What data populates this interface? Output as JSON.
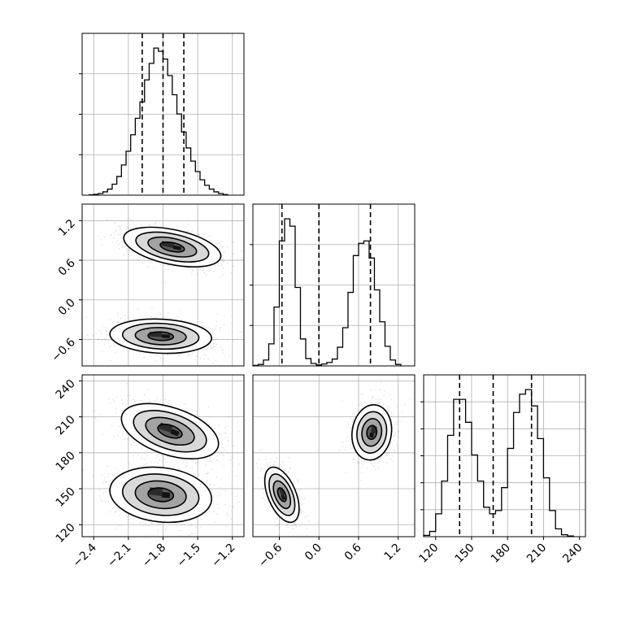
{
  "chart_data": {
    "type": "corner",
    "title": "",
    "grid": true,
    "parameters": [
      {
        "label": "",
        "range": [
          -2.5,
          -1.1
        ],
        "ticks": [
          -2.4,
          -2.1,
          -1.8,
          -1.5,
          -1.2
        ],
        "tick_labels": [
          "−2.4",
          "−2.1",
          "−1.8",
          "−1.5",
          "−1.2"
        ],
        "quantiles": [
          -1.98,
          -1.8,
          -1.62
        ]
      },
      {
        "label": "",
        "range": [
          -1.0,
          1.45
        ],
        "ticks": [
          -0.6,
          0.0,
          0.6,
          1.2
        ],
        "tick_labels": [
          "−0.6",
          "0.0",
          "0.6",
          "1.2"
        ],
        "quantiles": [
          -0.56,
          0.0,
          0.78
        ]
      },
      {
        "label": "",
        "range": [
          110,
          245
        ],
        "ticks": [
          120,
          150,
          180,
          210,
          240
        ],
        "tick_labels": [
          "120",
          "150",
          "180",
          "210",
          "240"
        ],
        "quantiles": [
          140,
          168,
          200
        ]
      }
    ],
    "histograms": [
      {
        "param": 0,
        "bin_edges": [
          -2.44,
          -2.4,
          -2.36,
          -2.32,
          -2.28,
          -2.24,
          -2.2,
          -2.16,
          -2.12,
          -2.08,
          -2.04,
          -2.0,
          -1.96,
          -1.92,
          -1.88,
          -1.84,
          -1.8,
          -1.76,
          -1.72,
          -1.68,
          -1.64,
          -1.6,
          -1.56,
          -1.52,
          -1.48,
          -1.44,
          -1.4,
          -1.36,
          -1.32,
          -1.28,
          -1.24
        ],
        "counts": [
          0.5,
          1.5,
          3,
          6,
          11,
          20,
          34,
          55,
          80,
          110,
          140,
          170,
          210,
          240,
          268,
          262,
          248,
          218,
          183,
          148,
          115,
          86,
          62,
          43,
          28,
          18,
          11,
          6,
          3,
          1
        ]
      },
      {
        "param": 1,
        "bin_edges": [
          -1.0,
          -0.92,
          -0.84,
          -0.76,
          -0.68,
          -0.6,
          -0.52,
          -0.44,
          -0.36,
          -0.28,
          -0.2,
          -0.12,
          -0.04,
          0.04,
          0.12,
          0.2,
          0.28,
          0.36,
          0.44,
          0.52,
          0.6,
          0.68,
          0.76,
          0.84,
          0.92,
          1.0,
          1.08,
          1.16,
          1.24
        ],
        "counts": [
          1,
          3,
          12,
          45,
          120,
          255,
          300,
          285,
          160,
          55,
          15,
          5,
          2,
          4,
          7,
          14,
          38,
          78,
          150,
          225,
          250,
          255,
          220,
          155,
          90,
          40,
          12,
          3
        ]
      },
      {
        "param": 2,
        "bin_edges": [
          110,
          115,
          120,
          125,
          130,
          135,
          140,
          145,
          150,
          155,
          160,
          165,
          170,
          175,
          180,
          185,
          190,
          195,
          200,
          205,
          210,
          215,
          220,
          225,
          230,
          235
        ],
        "counts": [
          2,
          8,
          35,
          85,
          155,
          210,
          210,
          175,
          125,
          85,
          45,
          35,
          40,
          75,
          135,
          190,
          218,
          225,
          200,
          150,
          90,
          40,
          12,
          3,
          1
        ]
      }
    ],
    "density_2d": [
      {
        "x_param": 0,
        "y_param": 1,
        "modes": [
          {
            "center": [
              -1.82,
              -0.55
            ],
            "sd": [
              0.22,
              0.13
            ],
            "corr": -0.12,
            "weight": 0.5
          },
          {
            "center": [
              -1.72,
              0.8
            ],
            "sd": [
              0.21,
              0.15
            ],
            "corr": -0.45,
            "weight": 0.5
          }
        ]
      },
      {
        "x_param": 0,
        "y_param": 2,
        "modes": [
          {
            "center": [
              -1.82,
              145
            ],
            "sd": [
              0.22,
              11.5
            ],
            "corr": -0.15,
            "weight": 0.5
          },
          {
            "center": [
              -1.74,
              198
            ],
            "sd": [
              0.21,
              11.5
            ],
            "corr": -0.45,
            "weight": 0.5
          }
        ]
      },
      {
        "x_param": 1,
        "y_param": 2,
        "modes": [
          {
            "center": [
              -0.56,
              145
            ],
            "sd": [
              0.13,
              11.5
            ],
            "corr": -0.5,
            "weight": 0.5
          },
          {
            "center": [
              0.8,
              197
            ],
            "sd": [
              0.15,
              11.5
            ],
            "corr": 0.1,
            "weight": 0.5
          }
        ]
      }
    ],
    "contour_levels_sigma": [
      0.5,
      1.0,
      1.5,
      2.0
    ]
  }
}
